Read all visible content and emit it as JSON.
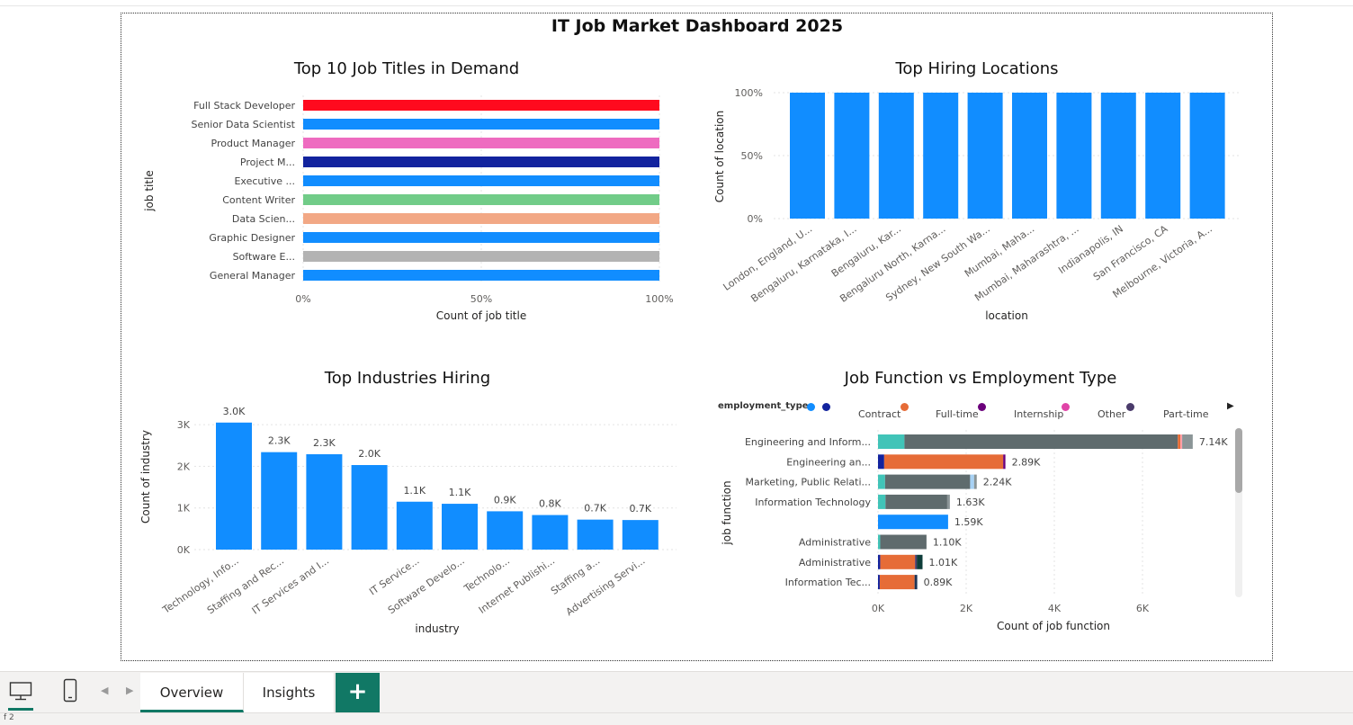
{
  "dashboard_title": "IT Job Market Dashboard 2025",
  "colors": {
    "primary": "#118DFF",
    "accent": "#117865"
  },
  "chart_data": [
    {
      "type": "bar",
      "orientation": "horizontal",
      "title": "Top 10 Job Titles in Demand",
      "xlabel": "Count of job title",
      "ylabel": "job title",
      "categories": [
        "Full Stack Developer",
        "Senior Data Scientist",
        "Product Manager",
        "Project M...",
        "Executive ...",
        "Content Writer",
        "Data Scien...",
        "Graphic Designer",
        "Software E...",
        "General Manager"
      ],
      "values": [
        100,
        100,
        100,
        100,
        100,
        100,
        100,
        100,
        100,
        100
      ],
      "colors": [
        "#FF0A1E",
        "#118DFF",
        "#EE6BC0",
        "#12239E",
        "#118DFF",
        "#71CC88",
        "#F2A885",
        "#118DFF",
        "#B3B3B3",
        "#118DFF"
      ],
      "xlim": [
        0,
        100
      ],
      "xticks": [
        "0%",
        "50%",
        "100%"
      ]
    },
    {
      "type": "bar",
      "title": "Top Hiring Locations",
      "xlabel": "location",
      "ylabel": "Count of location",
      "categories": [
        "London, England, U...",
        "Bengaluru, Karnataka, I...",
        "Bengaluru, Kar...",
        "Bengaluru North, Karna...",
        "Sydney, New South Wa...",
        "Mumbai, Maha...",
        "Mumbai, Maharashtra, ...",
        "Indianapolis, IN",
        "San Francisco, CA",
        "Melbourne, Victoria, A..."
      ],
      "values": [
        100,
        100,
        100,
        100,
        100,
        100,
        100,
        100,
        100,
        100
      ],
      "ylim": [
        0,
        100
      ],
      "yticks": [
        "0%",
        "50%",
        "100%"
      ]
    },
    {
      "type": "bar",
      "title": "Top Industries Hiring",
      "xlabel": "industry",
      "ylabel": "Count of industry",
      "categories": [
        "Technology, Info...",
        "Staffing and Rec...",
        "IT Services and I...",
        "",
        "IT Service...",
        "Software Develo...",
        "Technolo...",
        "Internet Publishi...",
        "Staffing a...",
        "Advertising Servi..."
      ],
      "values": [
        3050,
        2340,
        2290,
        2030,
        1150,
        1100,
        920,
        830,
        720,
        710
      ],
      "data_labels": [
        "3.0K",
        "2.3K",
        "2.3K",
        "2.0K",
        "1.1K",
        "1.1K",
        "0.9K",
        "0.8K",
        "0.7K",
        "0.7K"
      ],
      "ylim": [
        0,
        3300
      ],
      "yticks": [
        "0K",
        "1K",
        "2K",
        "3K"
      ]
    },
    {
      "type": "bar",
      "orientation": "horizontal",
      "stacked": true,
      "title": "Job Function vs Employment Type",
      "xlabel": "Count of job function",
      "ylabel": "job function",
      "legend_title": "employment_type",
      "legend": [
        {
          "name": "Contract",
          "color": "#E66C37"
        },
        {
          "name": "Full-time",
          "color": "#6B007B"
        },
        {
          "name": "Internship",
          "color": "#E044A7"
        },
        {
          "name": "Other",
          "color": "#4A3B6B"
        },
        {
          "name": "Part-time",
          "color": "#118DFF"
        }
      ],
      "legend_lead_dots": [
        "#118DFF",
        "#12239E"
      ],
      "categories": [
        "Engineering and Inform...",
        "Engineering an...",
        "Marketing, Public Relati...",
        "Information Technology",
        "",
        "Administrative",
        "Administrative",
        "Information Tec..."
      ],
      "totals": [
        7140,
        2890,
        2240,
        1630,
        1590,
        1100,
        1010,
        890
      ],
      "data_labels": [
        "7.14K",
        "2.89K",
        "2.24K",
        "1.63K",
        "1.59K",
        "1.10K",
        "1.01K",
        "0.89K"
      ],
      "segments": [
        [
          {
            "v": 600,
            "c": "#41C4B8"
          },
          {
            "v": 6200,
            "c": "#5F6B6D"
          },
          {
            "v": 60,
            "c": "#E66C37"
          },
          {
            "v": 40,
            "c": "#FF9DA7"
          },
          {
            "v": 240,
            "c": "#8B9597"
          }
        ],
        [
          {
            "v": 140,
            "c": "#12239E"
          },
          {
            "v": 2700,
            "c": "#E66C37"
          },
          {
            "v": 50,
            "c": "#6B007B"
          }
        ],
        [
          {
            "v": 160,
            "c": "#41C4B8"
          },
          {
            "v": 1930,
            "c": "#5F6B6D"
          },
          {
            "v": 90,
            "c": "#A7D2F5"
          },
          {
            "v": 60,
            "c": "#8B9597"
          }
        ],
        [
          {
            "v": 170,
            "c": "#41C4B8"
          },
          {
            "v": 1400,
            "c": "#5F6B6D"
          },
          {
            "v": 60,
            "c": "#8B9597"
          }
        ],
        [
          {
            "v": 1590,
            "c": "#118DFF"
          }
        ],
        [
          {
            "v": 50,
            "c": "#41C4B8"
          },
          {
            "v": 1050,
            "c": "#5F6B6D"
          }
        ],
        [
          {
            "v": 50,
            "c": "#12239E"
          },
          {
            "v": 790,
            "c": "#E66C37"
          },
          {
            "v": 40,
            "c": "#4A3B6B"
          },
          {
            "v": 130,
            "c": "#0E3D3A"
          }
        ],
        [
          {
            "v": 40,
            "c": "#12239E"
          },
          {
            "v": 790,
            "c": "#E66C37"
          },
          {
            "v": 60,
            "c": "#1D3557"
          }
        ]
      ],
      "xlim": [
        0,
        7400
      ],
      "xticks": [
        "0K",
        "2K",
        "4K",
        "6K"
      ]
    }
  ],
  "tabs": [
    {
      "label": "Overview",
      "active": true
    },
    {
      "label": "Insights",
      "active": false
    }
  ],
  "add_tab_label": "+",
  "status_text": "f 2"
}
